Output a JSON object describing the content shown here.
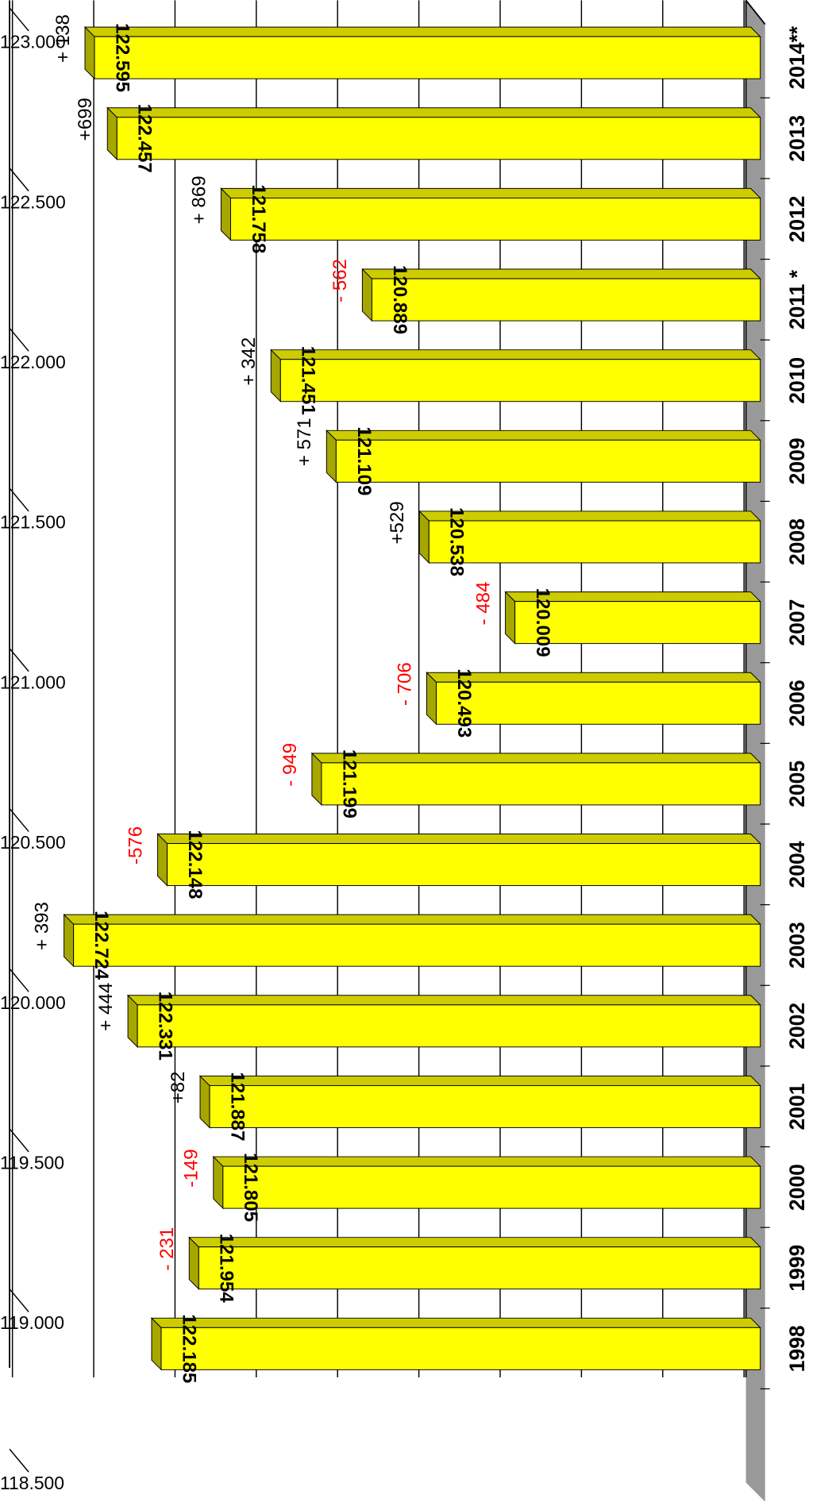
{
  "chart_data": {
    "type": "bar",
    "categories": [
      "1998",
      "1999",
      "2000",
      "2001",
      "2002",
      "2003",
      "2004",
      "2005",
      "2006",
      "2007",
      "2008",
      "2009",
      "2010",
      "2011 *",
      "2012",
      "2013",
      "2014**"
    ],
    "values": [
      122185,
      121954,
      121805,
      121887,
      122331,
      122724,
      122148,
      121199,
      120493,
      120009,
      120538,
      121109,
      121451,
      120889,
      121758,
      122457,
      122595
    ],
    "value_labels": [
      "122.185",
      "121.954",
      "121.805",
      "121.887",
      "122.331",
      "122.724",
      "122.148",
      "121.199",
      "120.493",
      "120.009",
      "120.538",
      "121.109",
      "121.451",
      "120.889",
      "121.758",
      "122.457",
      "122.595"
    ],
    "changes": [
      null,
      -231,
      -149,
      82,
      444,
      393,
      -576,
      -949,
      -706,
      -484,
      529,
      571,
      342,
      -562,
      869,
      699,
      138
    ],
    "change_labels": [
      null,
      "- 231",
      "-149",
      "+82",
      "+ 444",
      "+ 393",
      "-576",
      "- 949",
      "- 706",
      "- 484",
      "+529",
      "+ 571",
      "+ 342",
      "- 562",
      "+ 869",
      "+699",
      "+ 138"
    ],
    "color": "#ffff00",
    "ylim": [
      118500,
      123000
    ],
    "yticks": [
      {
        "value": 123000,
        "label": "123.000"
      },
      {
        "value": 122500,
        "label": "122.500"
      },
      {
        "value": 122000,
        "label": "122.000"
      },
      {
        "value": 121500,
        "label": "121.500"
      },
      {
        "value": 121000,
        "label": "121.000"
      },
      {
        "value": 120500,
        "label": "120.500"
      },
      {
        "value": 120000,
        "label": "120.000"
      },
      {
        "value": 119500,
        "label": "119.500"
      },
      {
        "value": 119000,
        "label": "119.000"
      },
      {
        "value": 118500,
        "label": "118.500"
      }
    ],
    "grid": true
  }
}
